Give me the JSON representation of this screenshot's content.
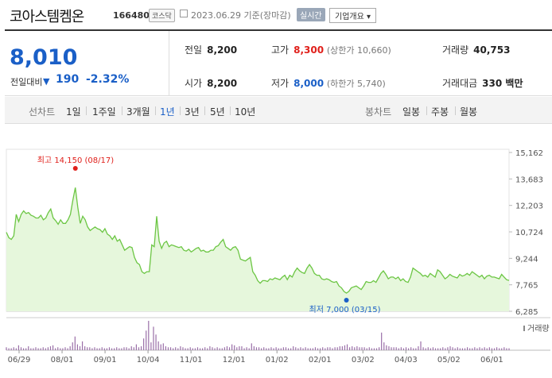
{
  "header": {
    "stock_name": "코아스템켐온",
    "stock_code": "166480",
    "market": "코스닥",
    "date": "2023.06.29 기준(장마감)",
    "live_label": "실시간",
    "corp_label": "기업개요 ▾"
  },
  "summary": {
    "price": "8,010",
    "change_label": "전일대비",
    "change_arrow": "▼",
    "change_value": "190",
    "change_rate": "-2.32%",
    "prev_close_label": "전일",
    "prev_close": "8,200",
    "high_label": "고가",
    "high": "8,300",
    "upper_limit": "(상한가 10,660)",
    "volume_label": "거래량",
    "volume": "40,753",
    "open_label": "시가",
    "open": "8,200",
    "low_label": "저가",
    "low": "8,000",
    "lower_limit": "(하한가 5,740)",
    "amount_label": "거래대금",
    "amount": "330 백만"
  },
  "tabs": {
    "line_chart_label": "선차트",
    "periods": [
      "1일",
      "1주일",
      "3개월",
      "1년",
      "3년",
      "5년",
      "10년"
    ],
    "selected": "1년",
    "candle_label": "봉차트",
    "candle_periods": [
      "일봉",
      "주봉",
      "월봉"
    ]
  },
  "chart_data": {
    "type": "area",
    "y_ticks": [
      "15,162",
      "13,683",
      "12,203",
      "10,724",
      "9,244",
      "7,765",
      "6,285"
    ],
    "ylim": [
      6285,
      15162
    ],
    "x_ticks": [
      "06/29",
      "08/01",
      "09/01",
      "10/04",
      "11/01",
      "12/01",
      "01/02",
      "02/01",
      "03/02",
      "04/03",
      "05/02",
      "06/01"
    ],
    "high_annotation": "최고 14,150 (08/17)",
    "low_annotation": "최저 7,000 (03/15)",
    "volume_label": "거래량",
    "line_color": "#6cc644",
    "fill_color": "#e6f7dc",
    "series": [
      {
        "values": [
          10700,
          10400,
          10300,
          10500,
          11700,
          11300,
          11700,
          11900,
          11750,
          11800,
          11650,
          11600,
          11500,
          11500,
          11650,
          11400,
          11500,
          11800,
          12000,
          11500,
          11350,
          11150,
          11400,
          11200,
          11200,
          11400,
          11700,
          12500,
          13200,
          12100,
          11200,
          11600,
          11400,
          11000,
          10800,
          10900,
          11000,
          10900,
          10850,
          10700,
          10900,
          10600,
          10500,
          10300,
          10500,
          10200,
          10300,
          10000,
          9700,
          9800,
          9900,
          9850,
          9300,
          9000,
          8900,
          8500,
          8400,
          8500,
          8500,
          10000,
          9900,
          11600,
          10200,
          9800,
          10100,
          10200,
          9900,
          10000,
          9950,
          9900,
          9850,
          9900,
          9700,
          9650,
          9750,
          9600,
          9700,
          9800,
          9850,
          9650,
          9700,
          9600,
          9600,
          9700,
          9700,
          9900,
          9950,
          10150,
          10300,
          9900,
          9800,
          9700,
          9850,
          9900,
          9700,
          9200,
          9150,
          9100,
          9200,
          9300,
          8500,
          8300,
          8000,
          7850,
          8000,
          8000,
          7950,
          8100,
          8050,
          8150,
          8100,
          8050,
          8200,
          8300,
          8050,
          8300,
          8200,
          8500,
          8700,
          8550,
          8450,
          8400,
          8700,
          8900,
          8700,
          8400,
          8300,
          8300,
          8100,
          8050,
          8100,
          8050,
          7950,
          7900,
          7950,
          7700,
          7600,
          7400,
          7300,
          7400,
          7600,
          7650,
          7700,
          7600,
          7500,
          7700,
          7950,
          7900,
          7900,
          8000,
          7900,
          8150,
          8400,
          8550,
          8350,
          8100,
          8200,
          8200,
          8100,
          8200,
          8000,
          8100,
          7950,
          7900,
          8200,
          8700,
          8600,
          8500,
          8400,
          8250,
          8300,
          8200,
          8400,
          8300,
          8200,
          8600,
          8500,
          8300,
          8100,
          8200,
          8350,
          8250,
          8200,
          8150,
          8350,
          8250,
          8300,
          8400,
          8300,
          8500,
          8400,
          8300,
          8200,
          8300,
          8100,
          8250,
          8300,
          8200,
          8200,
          8150,
          8100,
          8350,
          8200,
          8050,
          8010
        ]
      }
    ],
    "volume": [
      3,
      2,
      2,
      3,
      2,
      5,
      3,
      2,
      2,
      4,
      2,
      2,
      3,
      2,
      2,
      3,
      2,
      3,
      4,
      5,
      2,
      3,
      2,
      2,
      3,
      2,
      4,
      8,
      14,
      6,
      4,
      9,
      4,
      3,
      3,
      2,
      3,
      2,
      2,
      3,
      2,
      2,
      3,
      2,
      2,
      3,
      2,
      2,
      3,
      3,
      2,
      4,
      3,
      6,
      3,
      4,
      12,
      20,
      30,
      8,
      24,
      16,
      9,
      6,
      7,
      4,
      3,
      3,
      2,
      3,
      2,
      4,
      3,
      2,
      2,
      3,
      2,
      2,
      3,
      2,
      2,
      3,
      2,
      4,
      3,
      2,
      3,
      2,
      2,
      3,
      4,
      3,
      6,
      5,
      3,
      4,
      4,
      2,
      3,
      2,
      7,
      4,
      3,
      3,
      2,
      3,
      2,
      2,
      3,
      2,
      3,
      2,
      2,
      3,
      3,
      2,
      2,
      4,
      3,
      2,
      3,
      2,
      3,
      2,
      2,
      2,
      3,
      2,
      2,
      3,
      2,
      3,
      3,
      2,
      3,
      3,
      4,
      4,
      5,
      6,
      3,
      4,
      3,
      4,
      3,
      3,
      3,
      2,
      3,
      2,
      2,
      2,
      3,
      18,
      8,
      5,
      4,
      3,
      3,
      3,
      2,
      3,
      2,
      3,
      2,
      3,
      2,
      2,
      4,
      9,
      3,
      2,
      3,
      2,
      3,
      2,
      2,
      2,
      3,
      2,
      3,
      4,
      3,
      2,
      3,
      2,
      2,
      2,
      3,
      2,
      2,
      3,
      2,
      3,
      2,
      3,
      2,
      3,
      2,
      2,
      3,
      2,
      2,
      3,
      2,
      2
    ]
  }
}
